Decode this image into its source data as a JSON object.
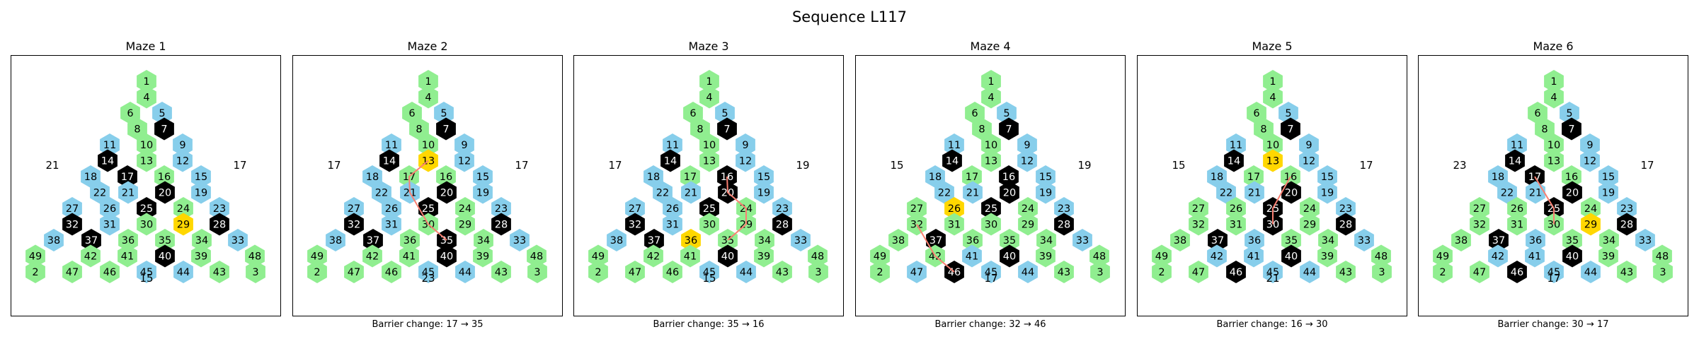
{
  "title": "Sequence L117",
  "colors": {
    "free": "#90ee90",
    "hole": "#87ceeb",
    "barrier": "#000000",
    "target": "#ffd700",
    "path": "#fa8072"
  },
  "hex_layout": [
    [
      1
    ],
    [
      4
    ],
    [
      6,
      5
    ],
    [
      8,
      7,
      9
    ],
    [
      11,
      10,
      13
    ],
    [
      14,
      12,
      15,
      17,
      16
    ],
    [
      18,
      20,
      19,
      21,
      24
    ],
    [
      22,
      23,
      26,
      25,
      27
    ],
    [
      32,
      30,
      29,
      28,
      31,
      33,
      34
    ],
    [
      38,
      36,
      37,
      35,
      39,
      40
    ],
    [
      42,
      41,
      45,
      44,
      43,
      48,
      46
    ],
    [
      49,
      47,
      2,
      3
    ]
  ],
  "mazes": [
    {
      "title": "Maze 1",
      "caption": "",
      "labels": {
        "left": "21",
        "right": "17",
        "bottom": "15"
      },
      "barriers": [
        7,
        14,
        17,
        20,
        25,
        28,
        32,
        37,
        40
      ],
      "holes": [
        5,
        9,
        11,
        12,
        15,
        18,
        19,
        21,
        22,
        23,
        26,
        27,
        31,
        33,
        38,
        44,
        45
      ],
      "target": 29,
      "path": []
    },
    {
      "title": "Maze 2",
      "caption": "Barrier change: 17 → 35",
      "labels": {
        "left": "17",
        "right": "17",
        "bottom": "23"
      },
      "barriers": [
        7,
        14,
        20,
        25,
        28,
        32,
        35,
        37,
        40
      ],
      "holes": [
        5,
        9,
        11,
        12,
        15,
        18,
        19,
        21,
        22,
        23,
        26,
        27,
        31,
        33,
        38,
        44,
        45
      ],
      "target": 13,
      "path": [
        13,
        17,
        21,
        30,
        35
      ]
    },
    {
      "title": "Maze 3",
      "caption": "Barrier change: 35 → 16",
      "labels": {
        "left": "17",
        "right": "19",
        "bottom": "15"
      },
      "barriers": [
        7,
        14,
        16,
        20,
        25,
        28,
        32,
        37,
        40
      ],
      "holes": [
        5,
        9,
        11,
        12,
        15,
        18,
        19,
        21,
        22,
        23,
        26,
        27,
        31,
        33,
        38,
        44,
        45
      ],
      "target": 36,
      "path": [
        16,
        20,
        24,
        29,
        35
      ]
    },
    {
      "title": "Maze 4",
      "caption": "Barrier change: 32 → 46",
      "labels": {
        "left": "15",
        "right": "19",
        "bottom": "17"
      },
      "barriers": [
        7,
        14,
        16,
        20,
        25,
        28,
        37,
        40,
        46
      ],
      "holes": [
        5,
        9,
        11,
        12,
        15,
        18,
        19,
        21,
        22,
        23,
        33,
        41,
        44,
        45,
        47
      ],
      "target": 26,
      "path": [
        32,
        42,
        46
      ]
    },
    {
      "title": "Maze 5",
      "caption": "Barrier change: 16 → 30",
      "labels": {
        "left": "15",
        "right": "17",
        "bottom": "21"
      },
      "barriers": [
        7,
        14,
        20,
        25,
        28,
        30,
        37,
        40,
        46
      ],
      "holes": [
        5,
        9,
        11,
        12,
        15,
        18,
        19,
        21,
        22,
        23,
        33,
        36,
        41,
        42,
        44,
        45
      ],
      "target": 13,
      "path": [
        16,
        25,
        30
      ]
    },
    {
      "title": "Maze 6",
      "caption": "Barrier change: 30 → 17",
      "labels": {
        "left": "23",
        "right": "17",
        "bottom": "17"
      },
      "barriers": [
        7,
        14,
        17,
        20,
        25,
        28,
        37,
        40,
        46
      ],
      "holes": [
        5,
        9,
        11,
        12,
        15,
        18,
        19,
        21,
        22,
        23,
        33,
        36,
        41,
        42,
        44,
        45
      ],
      "target": 29,
      "path": [
        17,
        25,
        30
      ]
    }
  ]
}
